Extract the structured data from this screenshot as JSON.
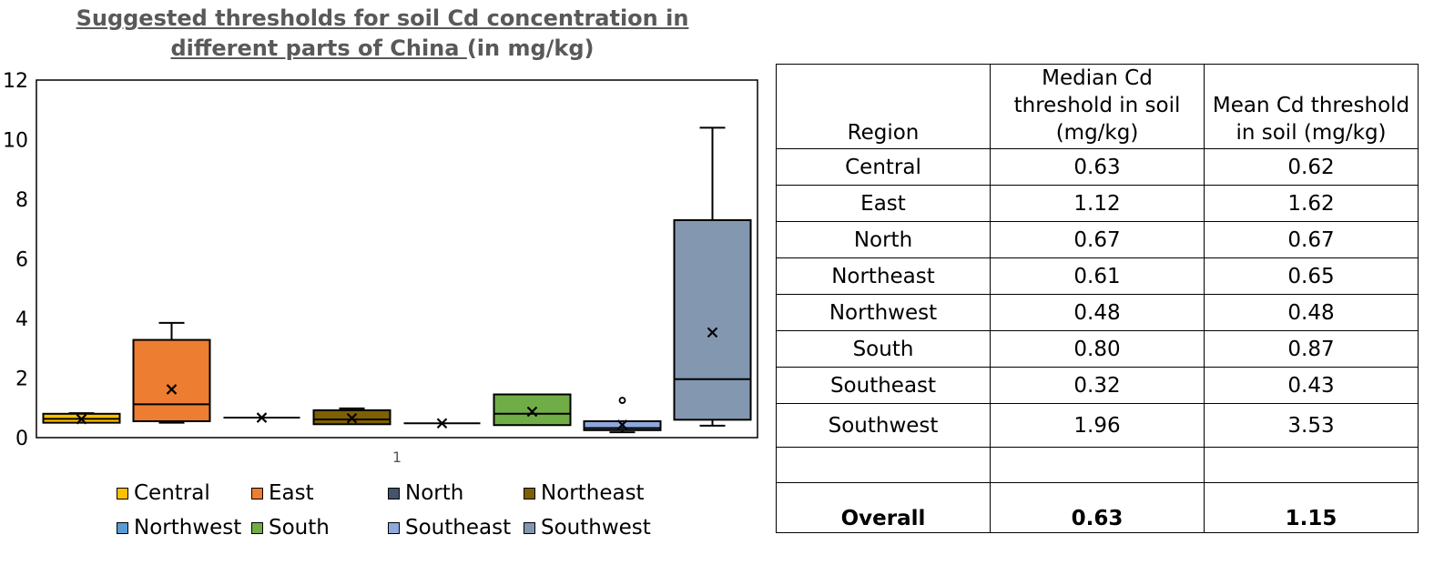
{
  "chart_data": {
    "type": "box",
    "title_part1": "Suggested thresholds for soil Cd concentration in different parts of China ",
    "title_part2": "(in mg/kg)",
    "x_category": "1",
    "ylim": [
      0,
      12
    ],
    "yticks": [
      0,
      2,
      4,
      6,
      8,
      10,
      12
    ],
    "grid": false,
    "legend_position": "bottom",
    "series": [
      {
        "name": "Central",
        "color": "#FFC000",
        "min": 0.5,
        "q1": 0.5,
        "median": 0.63,
        "q3": 0.8,
        "max": 0.82,
        "mean": 0.62,
        "outliers": []
      },
      {
        "name": "East",
        "color": "#ED7D31",
        "min": 0.5,
        "q1": 0.55,
        "median": 1.12,
        "q3": 3.28,
        "max": 3.85,
        "mean": 1.62,
        "outliers": []
      },
      {
        "name": "North",
        "color": "#44546A",
        "min": 0.67,
        "q1": 0.67,
        "median": 0.67,
        "q3": 0.67,
        "max": 0.67,
        "mean": 0.67,
        "outliers": []
      },
      {
        "name": "Northeast",
        "color": "#7F6000",
        "min": 0.45,
        "q1": 0.45,
        "median": 0.61,
        "q3": 0.92,
        "max": 0.98,
        "mean": 0.65,
        "outliers": []
      },
      {
        "name": "Northwest",
        "color": "#5B9BD5",
        "min": 0.48,
        "q1": 0.48,
        "median": 0.48,
        "q3": 0.48,
        "max": 0.48,
        "mean": 0.48,
        "outliers": []
      },
      {
        "name": "South",
        "color": "#70AD47",
        "min": 0.42,
        "q1": 0.42,
        "median": 0.8,
        "q3": 1.45,
        "max": 1.45,
        "mean": 0.87,
        "outliers": []
      },
      {
        "name": "Southeast",
        "color": "#8EA9DB",
        "min": 0.18,
        "q1": 0.25,
        "median": 0.32,
        "q3": 0.55,
        "max": 0.55,
        "mean": 0.43,
        "outliers": [
          1.25
        ]
      },
      {
        "name": "Southwest",
        "color": "#8497B0",
        "min": 0.4,
        "q1": 0.6,
        "median": 1.96,
        "q3": 7.3,
        "max": 10.4,
        "mean": 3.53,
        "outliers": []
      }
    ]
  },
  "table": {
    "headers": [
      "Region",
      "Median Cd threshold in soil (mg/kg)",
      "Mean Cd threshold in soil (mg/kg)"
    ],
    "rows": [
      [
        "Central",
        "0.63",
        "0.62"
      ],
      [
        "East",
        "1.12",
        "1.62"
      ],
      [
        "North",
        "0.67",
        "0.67"
      ],
      [
        "Northeast",
        "0.61",
        "0.65"
      ],
      [
        "Northwest",
        "0.48",
        "0.48"
      ],
      [
        "South",
        "0.80",
        "0.87"
      ],
      [
        "Southeast",
        "0.32",
        "0.43"
      ],
      [
        "Southwest",
        "1.96",
        "3.53"
      ],
      [
        "",
        "",
        ""
      ]
    ],
    "overall": [
      "Overall",
      "0.63",
      "1.15"
    ]
  }
}
